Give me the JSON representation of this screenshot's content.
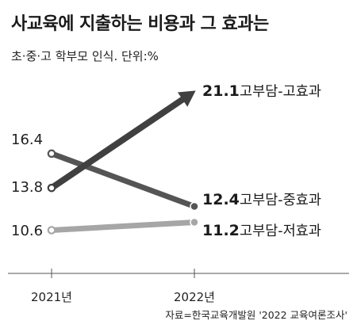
{
  "title": "사교육에 지출하는 비용과 그 효과는",
  "subtitle": "초·중·고 학부모 인식. 단위:%",
  "source": "자료=한국교육개발원 '2022 교육여론조사'",
  "colors": {
    "high": "#404040",
    "mid": "#555555",
    "low": "#a6a6a6",
    "start_marker": "#ffffff"
  },
  "chart_data": {
    "type": "line",
    "x": [
      "2021년",
      "2022년"
    ],
    "ylim": [
      8.5,
      22.5
    ],
    "grid": false,
    "legend": "none",
    "series": [
      {
        "name": "고부담-고효과",
        "values": [
          13.8,
          21.1
        ],
        "value_labels": [
          "13.8",
          "21.1"
        ],
        "color": "#404040",
        "style": "arrow"
      },
      {
        "name": "고부담-중효과",
        "values": [
          16.4,
          12.4
        ],
        "value_labels": [
          "16.4",
          "12.4"
        ],
        "color": "#555555",
        "style": "line"
      },
      {
        "name": "고부담-저효과",
        "values": [
          10.6,
          11.2
        ],
        "value_labels": [
          "10.6",
          "11.2"
        ],
        "color": "#a6a6a6",
        "style": "line"
      }
    ]
  }
}
